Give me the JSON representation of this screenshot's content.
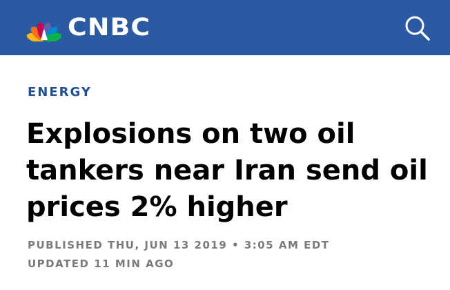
{
  "header": {
    "brand": "CNBC",
    "background_color": "#2b5aa3",
    "search_icon": "search-icon"
  },
  "article": {
    "section": "ENERGY",
    "section_color": "#1f4f95",
    "headline_lines": [
      "Explosions on two oil",
      "tankers near Iran send oil",
      "prices 2% higher"
    ],
    "published": "PUBLISHED THU, JUN 13 2019 • 3:05 AM EDT",
    "updated": "UPDATED 11 MIN AGO",
    "meta_color": "#7a7a7a"
  }
}
